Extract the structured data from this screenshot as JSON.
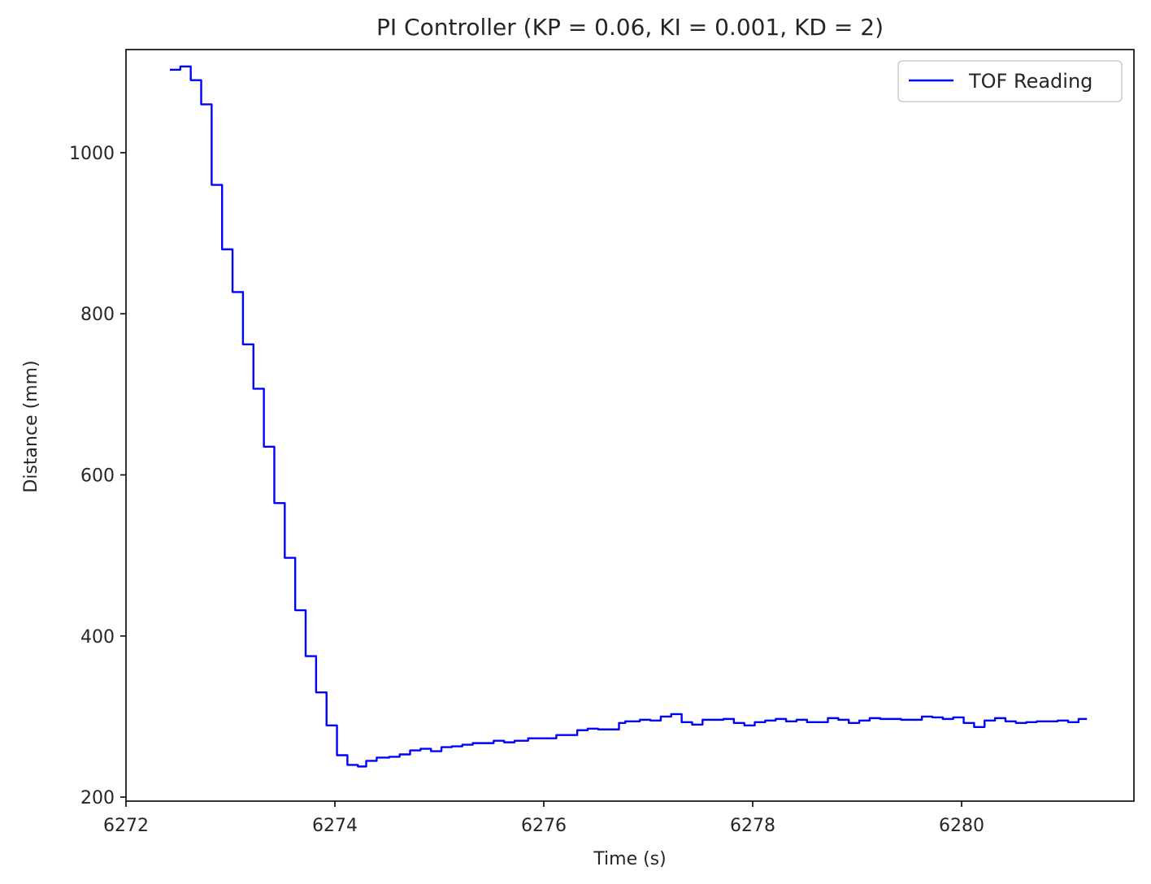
{
  "chart_data": {
    "type": "line",
    "title": "PI Controller (KP = 0.06, KI = 0.001, KD = 2)",
    "xlabel": "Time (s)",
    "ylabel": "Distance (mm)",
    "xlim": [
      6272.0,
      6281.65
    ],
    "ylim": [
      195,
      1128
    ],
    "x_ticks": [
      6272,
      6274,
      6276,
      6278,
      6280
    ],
    "y_ticks": [
      200,
      400,
      600,
      800,
      1000
    ],
    "grid": false,
    "legend_position": "top-right",
    "step": "post",
    "series": [
      {
        "name": "TOF Reading",
        "color": "#0000ff",
        "x": [
          6272.42,
          6272.52,
          6272.62,
          6272.72,
          6272.82,
          6272.92,
          6273.02,
          6273.12,
          6273.22,
          6273.32,
          6273.42,
          6273.52,
          6273.62,
          6273.72,
          6273.82,
          6273.92,
          6274.02,
          6274.12,
          6274.22,
          6274.3,
          6274.4,
          6274.52,
          6274.62,
          6274.72,
          6274.82,
          6274.92,
          6275.02,
          6275.12,
          6275.22,
          6275.32,
          6275.52,
          6275.62,
          6275.72,
          6275.85,
          6275.95,
          6276.12,
          6276.32,
          6276.42,
          6276.52,
          6276.72,
          6276.78,
          6276.92,
          6277.02,
          6277.12,
          6277.22,
          6277.32,
          6277.42,
          6277.52,
          6277.72,
          6277.82,
          6277.92,
          6278.02,
          6278.12,
          6278.22,
          6278.32,
          6278.42,
          6278.52,
          6278.72,
          6278.82,
          6278.92,
          6279.02,
          6279.12,
          6279.22,
          6279.42,
          6279.62,
          6279.72,
          6279.82,
          6279.92,
          6280.02,
          6280.12,
          6280.22,
          6280.32,
          6280.42,
          6280.52,
          6280.62,
          6280.72,
          6280.92,
          6281.02,
          6281.12,
          6281.2
        ],
        "y": [
          1103,
          1107,
          1090,
          1060,
          960,
          880,
          827,
          762,
          707,
          635,
          565,
          497,
          432,
          375,
          330,
          289,
          252,
          240,
          238,
          245,
          249,
          250,
          253,
          258,
          260,
          257,
          262,
          263,
          265,
          267,
          270,
          268,
          270,
          273,
          273,
          277,
          283,
          285,
          284,
          292,
          294,
          296,
          295,
          300,
          303,
          293,
          290,
          296,
          297,
          292,
          289,
          293,
          295,
          297,
          294,
          296,
          293,
          298,
          296,
          292,
          295,
          298,
          297,
          296,
          300,
          299,
          297,
          299,
          292,
          287,
          295,
          298,
          294,
          292,
          293,
          294,
          295,
          293,
          297,
          297
        ]
      }
    ]
  }
}
